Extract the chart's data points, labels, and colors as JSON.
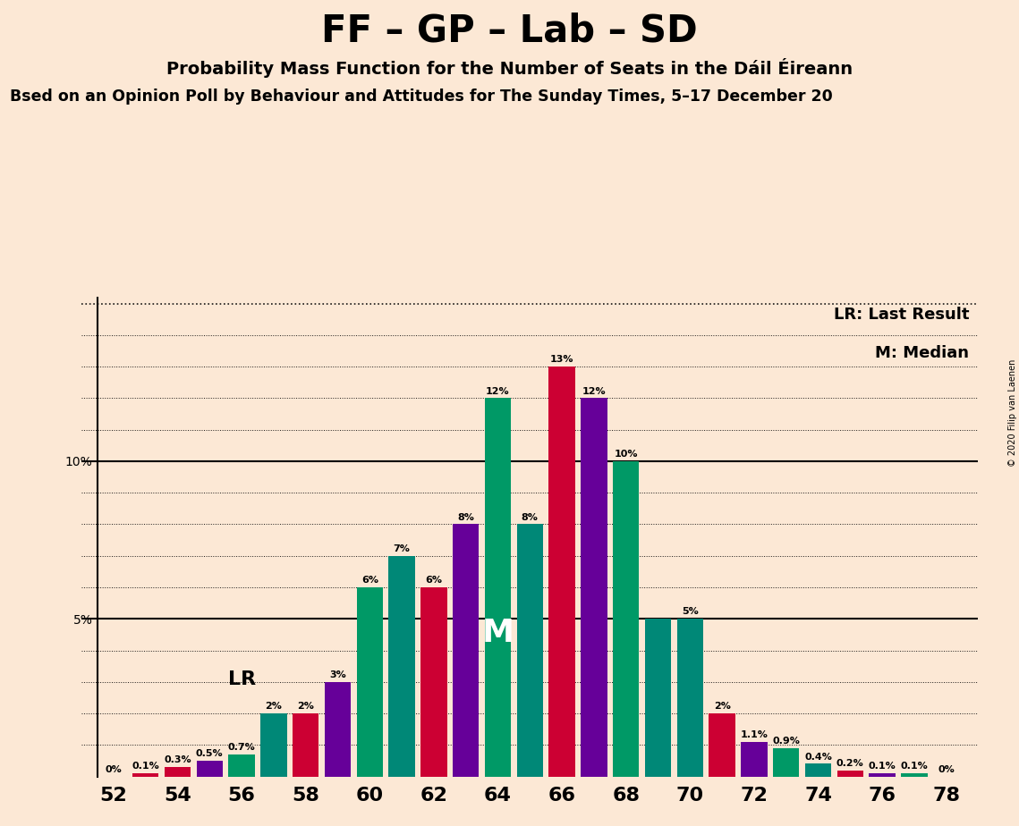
{
  "title": "FF – GP – Lab – SD",
  "subtitle": "Probability Mass Function for the Number of Seats in the Dáil Éireann",
  "subtitle2": "sed on an Opinion Poll by Behaviour and Attitudes for The Sunday Times, 5–17 December 20",
  "copyright": "© 2020 Filip van Laenen",
  "background_color": "#fce8d5",
  "seats": [
    52,
    53,
    54,
    55,
    56,
    57,
    58,
    59,
    60,
    61,
    62,
    63,
    64,
    65,
    66,
    67,
    68,
    69,
    70,
    71,
    72,
    73,
    74,
    75,
    76,
    77,
    78
  ],
  "probs": [
    0.0,
    0.001,
    0.003,
    0.005,
    0.007,
    0.02,
    0.02,
    0.03,
    0.06,
    0.07,
    0.06,
    0.08,
    0.12,
    0.08,
    0.13,
    0.12,
    0.1,
    0.05,
    0.05,
    0.02,
    0.011,
    0.009,
    0.004,
    0.002,
    0.001,
    0.001,
    0.0
  ],
  "colors": [
    "#007755",
    "#CC0033",
    "#CC0033",
    "#660099",
    "#009966",
    "#008877",
    "#CC0033",
    "#660099",
    "#009966",
    "#008877",
    "#CC0033",
    "#660099",
    "#009966",
    "#008877",
    "#CC0033",
    "#660099",
    "#009966",
    "#008877",
    "#008877",
    "#CC0033",
    "#660099",
    "#009966",
    "#008877",
    "#CC0033",
    "#660099",
    "#009966",
    "#007755"
  ],
  "label_texts": [
    "0%",
    "0.1%",
    "0.3%",
    "0.5%",
    "0.7%",
    "2%",
    "2%",
    "3%",
    "6%",
    "7%",
    "6%",
    "8%",
    "12%",
    "8%",
    "13%",
    "12%",
    "10%",
    "",
    "5%",
    "2%",
    "1.1%",
    "0.9%",
    "0.4%",
    "0.2%",
    "0.1%",
    "0.1%",
    "0%"
  ],
  "x_ticks": [
    52,
    54,
    56,
    58,
    60,
    62,
    64,
    66,
    68,
    70,
    72,
    74,
    76,
    78
  ],
  "lr_seat_idx": 5,
  "median_seat_idx": 12,
  "legend_lr": "LR: Last Result",
  "legend_m": "M: Median",
  "ylim": [
    0,
    0.152
  ]
}
